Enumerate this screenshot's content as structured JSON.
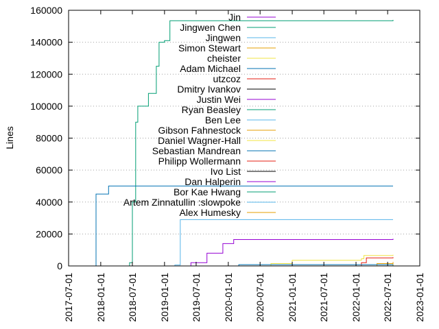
{
  "chart_data": {
    "type": "line",
    "title": "",
    "xlabel": "",
    "ylabel": "Lines",
    "x_type": "date",
    "xlim": [
      "2017-07-01",
      "2023-01-01"
    ],
    "ylim": [
      0,
      160000
    ],
    "grid": "dotted",
    "legend_position": "top-center",
    "x_ticks": [
      "2017-07-01",
      "2018-01-01",
      "2018-07-01",
      "2019-01-01",
      "2019-07-01",
      "2020-01-01",
      "2020-07-01",
      "2021-01-01",
      "2021-07-01",
      "2022-01-01",
      "2022-07-01",
      "2023-01-01"
    ],
    "y_ticks": [
      0,
      20000,
      40000,
      60000,
      80000,
      100000,
      120000,
      140000,
      160000
    ],
    "series": [
      {
        "name": "Jin",
        "color": "#9400d3",
        "points": [
          [
            "2021-11-01",
            0
          ],
          [
            "2022-08-01",
            0
          ]
        ]
      },
      {
        "name": "Jingwen Chen",
        "color": "#009e73",
        "points": [
          [
            "2018-05-15",
            0
          ],
          [
            "2018-06-15",
            2000
          ],
          [
            "2018-07-01",
            40000
          ],
          [
            "2018-07-20",
            90000
          ],
          [
            "2018-08-01",
            100000
          ],
          [
            "2018-10-01",
            108000
          ],
          [
            "2018-11-15",
            125000
          ],
          [
            "2018-12-01",
            140000
          ],
          [
            "2019-01-01",
            141000
          ],
          [
            "2019-02-01",
            153500
          ],
          [
            "2022-08-01",
            154000
          ]
        ]
      },
      {
        "name": "Jingwen",
        "color": "#56b4e9",
        "points": [
          [
            "2018-06-01",
            0
          ],
          [
            "2019-01-01",
            0
          ],
          [
            "2019-03-01",
            600
          ],
          [
            "2019-04-01",
            29000
          ],
          [
            "2022-08-01",
            29000
          ]
        ]
      },
      {
        "name": "Simon Stewart",
        "color": "#e69f00",
        "points": [
          [
            "2020-09-01",
            0
          ],
          [
            "2022-05-01",
            1500
          ],
          [
            "2022-08-01",
            1500
          ]
        ]
      },
      {
        "name": "cheister",
        "color": "#f0e442",
        "points": [
          [
            "2020-07-01",
            0
          ],
          [
            "2020-09-01",
            1500
          ],
          [
            "2021-01-01",
            3500
          ],
          [
            "2022-02-01",
            4500
          ],
          [
            "2022-02-15",
            6500
          ],
          [
            "2022-08-01",
            7000
          ]
        ]
      },
      {
        "name": "Adam Michael",
        "color": "#0072b2",
        "points": [
          [
            "2017-12-01",
            0
          ],
          [
            "2017-12-05",
            45000
          ],
          [
            "2018-02-15",
            50000
          ],
          [
            "2022-08-01",
            50000
          ]
        ]
      },
      {
        "name": "utzcoz",
        "color": "#e51e10",
        "points": [
          [
            "2021-03-01",
            0
          ],
          [
            "2022-02-01",
            2000
          ],
          [
            "2022-03-01",
            5000
          ],
          [
            "2022-08-01",
            5500
          ]
        ]
      },
      {
        "name": "Dmitry Ivankov",
        "color": "#000000",
        "points": [
          [
            "2020-01-01",
            0
          ],
          [
            "2022-08-01",
            300
          ]
        ]
      },
      {
        "name": "Justin Wei",
        "color": "#9400d3",
        "points": [
          [
            "2019-03-01",
            0
          ],
          [
            "2019-06-01",
            2000
          ],
          [
            "2019-09-01",
            8000
          ],
          [
            "2019-12-01",
            14000
          ],
          [
            "2020-02-01",
            16500
          ],
          [
            "2022-08-01",
            17000
          ]
        ]
      },
      {
        "name": "Ryan Beasley",
        "color": "#009e73",
        "points": [
          [
            "2019-03-01",
            0
          ],
          [
            "2022-08-01",
            800
          ]
        ]
      },
      {
        "name": "Ben Lee",
        "color": "#56b4e9",
        "points": [
          [
            "2018-06-01",
            0
          ],
          [
            "2022-08-01",
            400
          ]
        ]
      },
      {
        "name": "Gibson Fahnestock",
        "color": "#e69f00",
        "points": [
          [
            "2021-06-01",
            0
          ],
          [
            "2022-08-01",
            2500
          ]
        ]
      },
      {
        "name": "Daniel Wagner-Hall",
        "color": "#f0e442",
        "points": [
          [
            "2020-01-01",
            0
          ],
          [
            "2022-08-01",
            1000
          ]
        ]
      },
      {
        "name": "Sebastian Mandrean",
        "color": "#0072b2",
        "points": [
          [
            "2019-06-01",
            0
          ],
          [
            "2020-03-01",
            800
          ],
          [
            "2022-08-01",
            1000
          ]
        ]
      },
      {
        "name": "Philipp Wollermann",
        "color": "#e51e10",
        "points": [
          [
            "2020-06-01",
            0
          ],
          [
            "2022-08-01",
            400
          ]
        ]
      },
      {
        "name": "Ivo List",
        "color": "#000000",
        "points": [
          [
            "2020-03-01",
            0
          ],
          [
            "2022-08-01",
            300
          ]
        ]
      },
      {
        "name": "Dan Halperin",
        "color": "#9400d3",
        "points": [
          [
            "2021-10-01",
            0
          ],
          [
            "2022-08-01",
            200
          ]
        ]
      },
      {
        "name": "Bor Kae Hwang",
        "color": "#009e73",
        "points": [
          [
            "2018-06-01",
            0
          ],
          [
            "2022-08-01",
            300
          ]
        ]
      },
      {
        "name": "Artem Zinnatullin :slowpoke",
        "color": "#56b4e9",
        "points": [
          [
            "2018-06-01",
            0
          ],
          [
            "2022-08-01",
            200
          ]
        ]
      },
      {
        "name": "Alex Humesky",
        "color": "#e69f00",
        "points": [
          [
            "2020-01-01",
            0
          ],
          [
            "2022-08-01",
            200
          ]
        ]
      }
    ]
  }
}
